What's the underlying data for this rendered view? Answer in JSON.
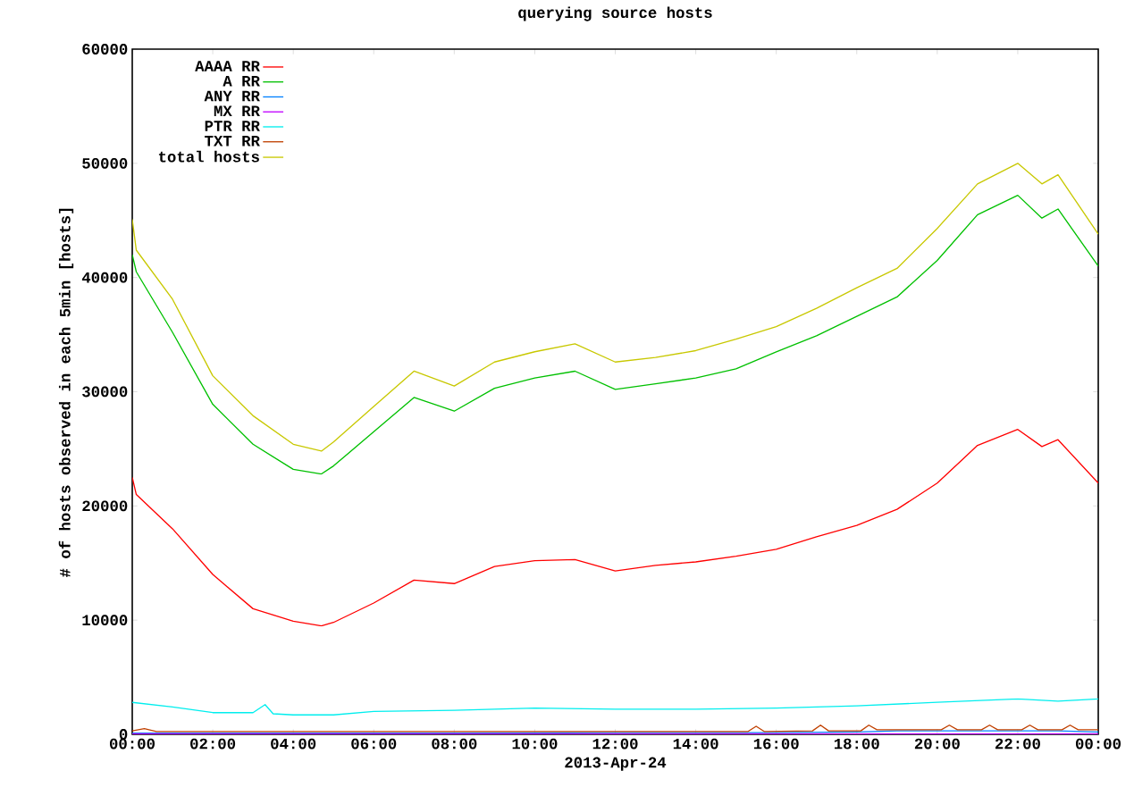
{
  "chart_data": {
    "type": "line",
    "title": "querying source hosts",
    "xlabel": "2013-Apr-24",
    "ylabel": "# of hosts observed in each 5min [hosts]",
    "xlim": [
      0,
      24
    ],
    "xticks": [
      {
        "value": 0,
        "label": "00:00"
      },
      {
        "value": 2,
        "label": "02:00"
      },
      {
        "value": 4,
        "label": "04:00"
      },
      {
        "value": 6,
        "label": "06:00"
      },
      {
        "value": 8,
        "label": "08:00"
      },
      {
        "value": 10,
        "label": "10:00"
      },
      {
        "value": 12,
        "label": "12:00"
      },
      {
        "value": 14,
        "label": "14:00"
      },
      {
        "value": 16,
        "label": "16:00"
      },
      {
        "value": 18,
        "label": "18:00"
      },
      {
        "value": 20,
        "label": "20:00"
      },
      {
        "value": 22,
        "label": "22:00"
      },
      {
        "value": 24,
        "label": "00:00"
      }
    ],
    "ylim": [
      0,
      60000
    ],
    "yticks": [
      0,
      10000,
      20000,
      30000,
      40000,
      50000,
      60000
    ],
    "grid": false,
    "legend": "top left",
    "marker": "none",
    "line_style": "solid",
    "series": [
      {
        "name": "AAAA RR",
        "color": "#ff0000",
        "x": [
          0,
          0.1,
          1,
          2,
          3,
          4,
          4.7,
          5,
          6,
          7,
          8,
          9,
          10,
          11,
          12,
          13,
          14,
          15,
          16,
          17,
          18,
          19,
          20,
          21,
          22,
          22.6,
          23,
          24
        ],
        "values": [
          22500,
          21000,
          18000,
          14000,
          11000,
          9900,
          9500,
          9800,
          11500,
          13500,
          13200,
          14700,
          15200,
          15300,
          14300,
          14800,
          15100,
          15600,
          16200,
          17300,
          18300,
          19700,
          22000,
          25300,
          26700,
          25200,
          25800,
          22000
        ]
      },
      {
        "name": "A RR",
        "color": "#00c000",
        "x": [
          0,
          0.1,
          1,
          2,
          3,
          4,
          4.7,
          5,
          6,
          7,
          8,
          9,
          10,
          11,
          12,
          13,
          14,
          15,
          16,
          17,
          18,
          19,
          20,
          21,
          22,
          22.6,
          23,
          24
        ],
        "values": [
          42000,
          40500,
          35200,
          28900,
          25400,
          23200,
          22800,
          23500,
          26500,
          29500,
          28300,
          30300,
          31200,
          31800,
          30200,
          30700,
          31200,
          32000,
          33500,
          34900,
          36600,
          38300,
          41500,
          45500,
          47200,
          45200,
          46000,
          41000
        ]
      },
      {
        "name": "ANY RR",
        "color": "#0080ff",
        "x": [
          0,
          4,
          8,
          12,
          16,
          18,
          19,
          20,
          22,
          23,
          24
        ],
        "values": [
          100,
          100,
          100,
          150,
          150,
          200,
          300,
          300,
          300,
          300,
          200
        ]
      },
      {
        "name": "MX RR",
        "color": "#c000ff",
        "x": [
          0,
          6,
          12,
          18,
          24
        ],
        "values": [
          50,
          50,
          50,
          50,
          50
        ]
      },
      {
        "name": "PTR RR",
        "color": "#00eeee",
        "x": [
          0,
          1,
          2,
          3,
          3.3,
          3.5,
          4,
          5,
          6,
          8,
          10,
          12,
          14,
          16,
          18,
          20,
          22,
          23,
          24
        ],
        "values": [
          2800,
          2400,
          1900,
          1900,
          2600,
          1800,
          1700,
          1700,
          2000,
          2100,
          2300,
          2200,
          2200,
          2300,
          2500,
          2800,
          3100,
          2900,
          3100
        ]
      },
      {
        "name": "TXT RR",
        "color": "#c04000",
        "x": [
          0,
          0.3,
          0.6,
          2,
          4,
          6,
          8,
          10,
          12,
          14,
          15.3,
          15.5,
          15.7,
          16.9,
          17.1,
          17.3,
          18.1,
          18.3,
          18.5,
          19,
          20.1,
          20.3,
          20.5,
          21.1,
          21.3,
          21.5,
          22.1,
          22.3,
          22.5,
          23.1,
          23.3,
          23.5,
          24
        ],
        "values": [
          300,
          500,
          250,
          250,
          250,
          250,
          250,
          250,
          250,
          250,
          250,
          700,
          250,
          300,
          800,
          300,
          300,
          800,
          400,
          400,
          400,
          800,
          400,
          400,
          800,
          400,
          400,
          800,
          400,
          400,
          800,
          400,
          400
        ]
      },
      {
        "name": "total hosts",
        "color": "#c8c800",
        "x": [
          0,
          0.1,
          1,
          2,
          3,
          4,
          4.7,
          5,
          6,
          7,
          8,
          9,
          10,
          11,
          12,
          13,
          14,
          15,
          16,
          17,
          18,
          19,
          20,
          21,
          22,
          22.6,
          23,
          24
        ],
        "values": [
          45100,
          42400,
          38100,
          31400,
          27900,
          25400,
          24800,
          25600,
          28700,
          31800,
          30500,
          32600,
          33500,
          34200,
          32600,
          33000,
          33600,
          34600,
          35700,
          37300,
          39100,
          40800,
          44300,
          48200,
          50000,
          48200,
          49000,
          43800
        ]
      }
    ]
  }
}
